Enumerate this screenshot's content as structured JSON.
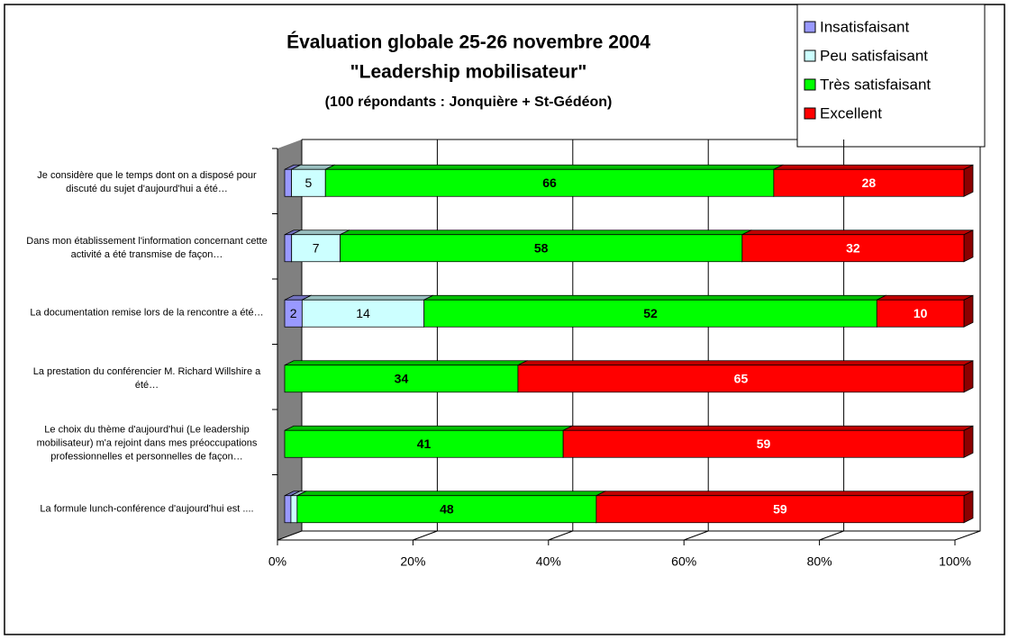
{
  "chart_data": {
    "type": "bar",
    "orientation": "horizontal",
    "stacking": "percent",
    "title": [
      "Évaluation globale 25-26 novembre 2004",
      "\"Leadership mobilisateur\"",
      "(100 répondants : Jonquière + St-Gédéon)"
    ],
    "categories": [
      "Je considère que le temps dont on a disposé pour discuté du sujet d'aujourd'hui a été…",
      "Dans mon établissement l'information concernant cette activité a été transmise de façon…",
      "La documentation remise lors de la rencontre a été…",
      "La prestation du conférencier M. Richard Willshire a été…",
      "Le choix du thème d'aujourd'hui (Le leadership mobilisateur) m'a rejoint dans mes préoccupations professionnelles et personnelles de façon…",
      "La formule lunch-conférence d'aujourd'hui est ...."
    ],
    "series": [
      {
        "name": "Insatisfaisant",
        "color": "#9999ff",
        "values": [
          1,
          1,
          2,
          0,
          0,
          1
        ],
        "value_labels": [
          null,
          null,
          "2",
          null,
          null,
          null
        ]
      },
      {
        "name": "Peu satisfaisant",
        "color": "#ccffff",
        "values": [
          5,
          7,
          14,
          0,
          0,
          1
        ],
        "value_labels": [
          "5",
          "7",
          "14",
          null,
          null,
          null
        ]
      },
      {
        "name": "Très satisfaisant",
        "color": "#00ff00",
        "values": [
          66,
          58,
          52,
          34,
          41,
          48
        ],
        "value_labels": [
          "66",
          "58",
          "52",
          "34",
          "41",
          "48"
        ]
      },
      {
        "name": "Excellent",
        "color": "#ff0000",
        "values": [
          28,
          32,
          10,
          65,
          59,
          59
        ],
        "value_labels": [
          "28",
          "32",
          "10",
          "65",
          "59",
          "59"
        ]
      }
    ],
    "xlim": [
      0,
      100
    ],
    "xticks": [
      {
        "value": 0,
        "label": "0%"
      },
      {
        "value": 20,
        "label": "20%"
      },
      {
        "value": 40,
        "label": "40%"
      },
      {
        "value": 60,
        "label": "60%"
      },
      {
        "value": 80,
        "label": "80%"
      },
      {
        "value": 100,
        "label": "100%"
      }
    ],
    "grid": true,
    "legend": "top-right"
  }
}
